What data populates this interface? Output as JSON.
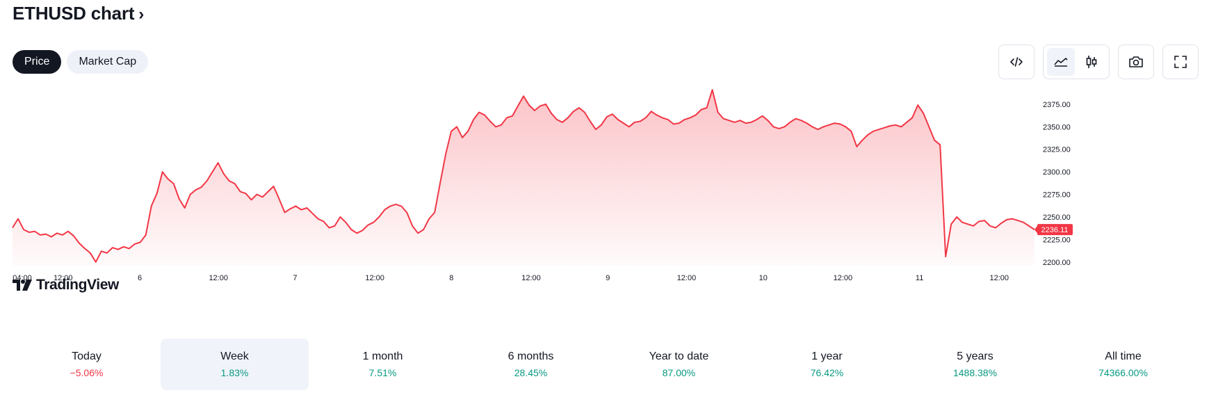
{
  "header": {
    "title": "ETHUSD chart",
    "chevron": "›"
  },
  "tabs": [
    {
      "label": "Price",
      "active": true
    },
    {
      "label": "Market Cap",
      "active": false
    }
  ],
  "toolbar": {
    "buttons": [
      "embed-icon",
      "area-chart-icon",
      "candlestick-icon",
      "camera-icon",
      "fullscreen-icon"
    ],
    "selected": "area-chart-icon"
  },
  "logo": {
    "text": "TradingView"
  },
  "colors": {
    "line": "#f23645",
    "positive": "#089981",
    "negative": "#f23645",
    "dark": "#131722"
  },
  "chart_data": {
    "type": "area",
    "xlabel": "",
    "ylabel": "",
    "yticks": [
      "2200.00",
      "2225.00",
      "2250.00",
      "2275.00",
      "2300.00",
      "2325.00",
      "2350.00",
      "2375.00"
    ],
    "ylim": [
      2196,
      2398
    ],
    "xticks": [
      "04:00",
      "12:00",
      "6",
      "12:00",
      "7",
      "12:00",
      "8",
      "12:00",
      "9",
      "12:00",
      "10",
      "12:00",
      "11",
      "12:00"
    ],
    "last_value_label": "2236.11",
    "series": [
      {
        "values": [
          2238,
          2248,
          2236,
          2233,
          2234,
          2230,
          2231,
          2228,
          2232,
          2230,
          2234,
          2229,
          2221,
          2215,
          2210,
          2200,
          2212,
          2210,
          2216,
          2214,
          2217,
          2215,
          2220,
          2222,
          2230,
          2262,
          2276,
          2300,
          2292,
          2287,
          2270,
          2260,
          2275,
          2280,
          2283,
          2290,
          2300,
          2310,
          2298,
          2290,
          2287,
          2278,
          2276,
          2269,
          2275,
          2272,
          2278,
          2284,
          2270,
          2255,
          2259,
          2262,
          2258,
          2260,
          2254,
          2248,
          2245,
          2238,
          2240,
          2250,
          2244,
          2236,
          2232,
          2235,
          2241,
          2244,
          2250,
          2258,
          2262,
          2264,
          2262,
          2255,
          2240,
          2232,
          2236,
          2248,
          2255,
          2288,
          2320,
          2345,
          2350,
          2338,
          2345,
          2358,
          2366,
          2363,
          2356,
          2350,
          2352,
          2360,
          2362,
          2373,
          2384,
          2374,
          2368,
          2373,
          2375,
          2365,
          2358,
          2355,
          2360,
          2367,
          2371,
          2366,
          2356,
          2347,
          2352,
          2361,
          2364,
          2358,
          2354,
          2350,
          2355,
          2356,
          2360,
          2367,
          2363,
          2360,
          2358,
          2353,
          2354,
          2358,
          2360,
          2363,
          2369,
          2371,
          2391,
          2366,
          2359,
          2357,
          2355,
          2357,
          2354,
          2355,
          2358,
          2362,
          2357,
          2350,
          2348,
          2350,
          2355,
          2359,
          2357,
          2354,
          2350,
          2347,
          2350,
          2352,
          2354,
          2353,
          2350,
          2345,
          2328,
          2335,
          2341,
          2345,
          2347,
          2349,
          2351,
          2352,
          2350,
          2355,
          2360,
          2374,
          2365,
          2350,
          2335,
          2330,
          2206,
          2242,
          2250,
          2244,
          2242,
          2240,
          2245,
          2246,
          2240,
          2238,
          2243,
          2247,
          2248,
          2246,
          2244,
          2240,
          2236
        ]
      }
    ],
    "annotations": []
  },
  "performance": [
    {
      "label": "Today",
      "value": "−5.06%",
      "sign": "neg",
      "selected": false
    },
    {
      "label": "Week",
      "value": "1.83%",
      "sign": "pos",
      "selected": true
    },
    {
      "label": "1 month",
      "value": "7.51%",
      "sign": "pos",
      "selected": false
    },
    {
      "label": "6 months",
      "value": "28.45%",
      "sign": "pos",
      "selected": false
    },
    {
      "label": "Year to date",
      "value": "87.00%",
      "sign": "pos",
      "selected": false
    },
    {
      "label": "1 year",
      "value": "76.42%",
      "sign": "pos",
      "selected": false
    },
    {
      "label": "5 years",
      "value": "1488.38%",
      "sign": "pos",
      "selected": false
    },
    {
      "label": "All time",
      "value": "74366.00%",
      "sign": "pos",
      "selected": false
    }
  ]
}
